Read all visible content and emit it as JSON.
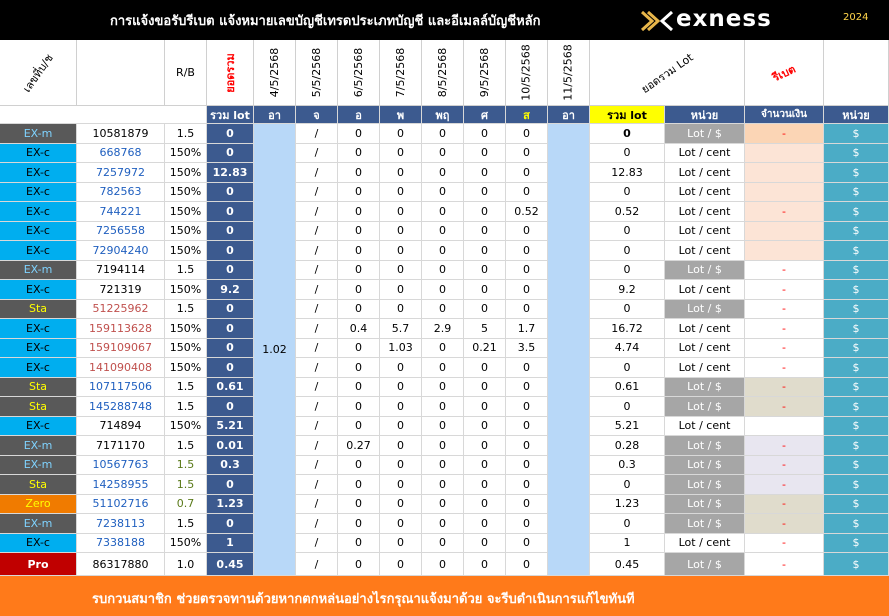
{
  "header": {
    "title": "การแจ้งขอรับรีเบต  แจ้งหมายเลขบัญชีเทรดประเภทบัญชี และอีเมลล์บัญชีหลัก",
    "brand": "exness",
    "year": "2024"
  },
  "columns": {
    "account_no": "เลขที่บ/ช",
    "rb": "R/B",
    "total_vertical": "ยอดรวม",
    "dates": [
      "4/5/2568",
      "5/5/2568",
      "6/5/2568",
      "7/5/2568",
      "8/5/2568",
      "9/5/2568",
      "10/5/2568",
      "11/5/2568"
    ],
    "total_lot_header": "ยอดรวม Lot",
    "rebate": "รีเบต"
  },
  "subheader": {
    "total_lot": "รวม lot",
    "days": [
      "อา",
      "จ",
      "อ",
      "พ",
      "พฤ",
      "ศ",
      "ส",
      "อา"
    ],
    "total_lot2": "รวม lot",
    "unit": "หน่วย",
    "amount": "จำนวนเงิน",
    "unit2": "หน่วย"
  },
  "merged_cell_value": "1.02",
  "rows": [
    {
      "type": "EX-m",
      "acct": "10581879",
      "rb": "1.5",
      "total": "0",
      "mon": "/",
      "d": [
        "0",
        "0",
        "0",
        "0",
        "0"
      ],
      "sum": "0",
      "unit": "Lot / $",
      "money": "-",
      "cur": "$"
    },
    {
      "type": "EX-c",
      "acct": "668768",
      "rb": "150%",
      "total": "0",
      "mon": "/",
      "d": [
        "0",
        "0",
        "0",
        "0",
        "0"
      ],
      "sum": "0",
      "unit": "Lot / cent",
      "money": "",
      "cur": "$"
    },
    {
      "type": "EX-c",
      "acct": "7257972",
      "rb": "150%",
      "total": "12.83",
      "mon": "/",
      "d": [
        "0",
        "0",
        "0",
        "0",
        "0"
      ],
      "sum": "12.83",
      "unit": "Lot / cent",
      "money": "",
      "cur": "$"
    },
    {
      "type": "EX-c",
      "acct": "782563",
      "rb": "150%",
      "total": "0",
      "mon": "/",
      "d": [
        "0",
        "0",
        "0",
        "0",
        "0"
      ],
      "sum": "0",
      "unit": "Lot / cent",
      "money": "",
      "cur": "$"
    },
    {
      "type": "EX-c",
      "acct": "744221",
      "rb": "150%",
      "total": "0",
      "mon": "/",
      "d": [
        "0",
        "0",
        "0",
        "0",
        "0.52"
      ],
      "sum": "0.52",
      "unit": "Lot / cent",
      "money": "-",
      "cur": "$"
    },
    {
      "type": "EX-c",
      "acct": "7256558",
      "rb": "150%",
      "total": "0",
      "mon": "/",
      "d": [
        "0",
        "0",
        "0",
        "0",
        "0"
      ],
      "sum": "0",
      "unit": "Lot / cent",
      "money": "",
      "cur": "$"
    },
    {
      "type": "EX-c",
      "acct": "72904240",
      "rb": "150%",
      "total": "0",
      "mon": "/",
      "d": [
        "0",
        "0",
        "0",
        "0",
        "0"
      ],
      "sum": "0",
      "unit": "Lot / cent",
      "money": "",
      "cur": "$"
    },
    {
      "type": "EX-m",
      "acct": "7194114",
      "rb": "1.5",
      "total": "0",
      "mon": "/",
      "d": [
        "0",
        "0",
        "0",
        "0",
        "0"
      ],
      "sum": "0",
      "unit": "Lot / $",
      "money": "-",
      "cur": "$"
    },
    {
      "type": "EX-c",
      "acct": "721319",
      "rb": "150%",
      "total": "9.2",
      "mon": "/",
      "d": [
        "0",
        "0",
        "0",
        "0",
        "0"
      ],
      "sum": "9.2",
      "unit": "Lot / cent",
      "money": "-",
      "cur": "$"
    },
    {
      "type": "Sta",
      "acct": "51225962",
      "rb": "1.5",
      "total": "0",
      "mon": "/",
      "d": [
        "0",
        "0",
        "0",
        "0",
        "0"
      ],
      "sum": "0",
      "unit": "Lot / $",
      "money": "-",
      "cur": "$"
    },
    {
      "type": "EX-c",
      "acct": "159113628",
      "rb": "150%",
      "total": "0",
      "mon": "/",
      "d": [
        "0.4",
        "5.7",
        "2.9",
        "5",
        "1.7"
      ],
      "sum": "16.72",
      "unit": "Lot / cent",
      "money": "-",
      "cur": "$"
    },
    {
      "type": "EX-c",
      "acct": "159109067",
      "rb": "150%",
      "total": "0",
      "mon": "/",
      "d": [
        "0",
        "1.03",
        "0",
        "0.21",
        "3.5"
      ],
      "sum": "4.74",
      "unit": "Lot / cent",
      "money": "-",
      "cur": "$"
    },
    {
      "type": "EX-c",
      "acct": "141090408",
      "rb": "150%",
      "total": "0",
      "mon": "/",
      "d": [
        "0",
        "0",
        "0",
        "0",
        "0"
      ],
      "sum": "0",
      "unit": "Lot / cent",
      "money": "-",
      "cur": "$"
    },
    {
      "type": "Sta",
      "acct": "107117506",
      "rb": "1.5",
      "total": "0.61",
      "mon": "/",
      "d": [
        "0",
        "0",
        "0",
        "0",
        "0"
      ],
      "sum": "0.61",
      "unit": "Lot / $",
      "money": "-",
      "cur": "$"
    },
    {
      "type": "Sta",
      "acct": "145288748",
      "rb": "1.5",
      "total": "0",
      "mon": "/",
      "d": [
        "0",
        "0",
        "0",
        "0",
        "0"
      ],
      "sum": "0",
      "unit": "Lot / $",
      "money": "-",
      "cur": "$"
    },
    {
      "type": "EX-c",
      "acct": "714894",
      "rb": "150%",
      "total": "5.21",
      "mon": "/",
      "d": [
        "0",
        "0",
        "0",
        "0",
        "0"
      ],
      "sum": "5.21",
      "unit": "Lot / cent",
      "money": "",
      "cur": "$"
    },
    {
      "type": "EX-m",
      "acct": "7171170",
      "rb": "1.5",
      "total": "0.01",
      "mon": "/",
      "d": [
        "0.27",
        "0",
        "0",
        "0",
        "0"
      ],
      "sum": "0.28",
      "unit": "Lot / $",
      "money": "-",
      "cur": "$"
    },
    {
      "type": "EX-m",
      "acct": "10567763",
      "rb": "1.5",
      "total": "0.3",
      "mon": "/",
      "d": [
        "0",
        "0",
        "0",
        "0",
        "0"
      ],
      "sum": "0.3",
      "unit": "Lot / $",
      "money": "-",
      "cur": "$"
    },
    {
      "type": "Sta",
      "acct": "14258955",
      "rb": "1.5",
      "total": "0",
      "mon": "/",
      "d": [
        "0",
        "0",
        "0",
        "0",
        "0"
      ],
      "sum": "0",
      "unit": "Lot / $",
      "money": "-",
      "cur": "$"
    },
    {
      "type": "Zero",
      "acct": "51102716",
      "rb": "0.7",
      "total": "1.23",
      "mon": "/",
      "d": [
        "0",
        "0",
        "0",
        "0",
        "0"
      ],
      "sum": "1.23",
      "unit": "Lot / $",
      "money": "-",
      "cur": "$"
    },
    {
      "type": "EX-m",
      "acct": "7238113",
      "rb": "1.5",
      "total": "0",
      "mon": "/",
      "d": [
        "0",
        "0",
        "0",
        "0",
        "0"
      ],
      "sum": "0",
      "unit": "Lot / $",
      "money": "-",
      "cur": "$"
    },
    {
      "type": "EX-c",
      "acct": "7338188",
      "rb": "150%",
      "total": "1",
      "mon": "/",
      "d": [
        "0",
        "0",
        "0",
        "0",
        "0"
      ],
      "sum": "1",
      "unit": "Lot / cent",
      "money": "-",
      "cur": "$"
    },
    {
      "type": "Pro",
      "acct": "86317880",
      "rb": "1.0",
      "total": "0.45",
      "mon": "/",
      "d": [
        "0",
        "0",
        "0",
        "0",
        "0"
      ],
      "sum": "0.45",
      "unit": "Lot / $",
      "money": "-",
      "cur": "$"
    }
  ],
  "footer": "รบกวนสมาชิก ช่วยตรวจทานด้วยหากตกหล่นอย่างไรกรุณาแจ้งมาด้วย จะรีบดำเนินการแก้ไขทันที",
  "colors": {
    "navy": "#3c5a8f",
    "lightblue": "#b8d8f8",
    "teal": "#4bacc6",
    "yellow": "#ffff00",
    "orange": "#ff7a1a",
    "header_bg": "#000000",
    "unit_bg_gray": "#a6a6a6",
    "type_emc": "#00aeef",
    "type_gray": "#595959",
    "type_zero": "#f07b00",
    "type_pro": "#c00000",
    "peach": "#fce4d6",
    "beige": "#e0dccc",
    "lavender": "#e8e6f0"
  },
  "icons": {
    "brand_mark": "exness-logo-mark"
  }
}
